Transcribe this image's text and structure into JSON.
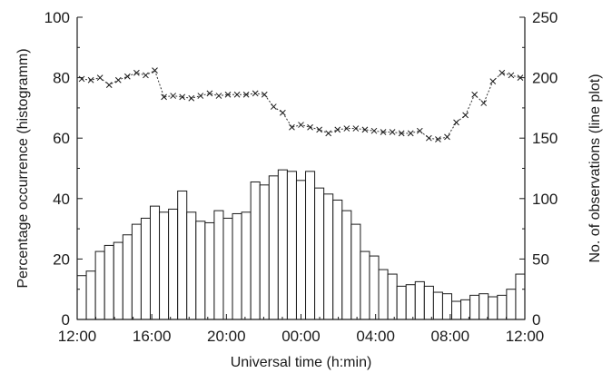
{
  "chart_data": {
    "type": "bar",
    "xlabel": "Universal time (h:min)",
    "ylabel": "Percentage occurrence (histogramm)",
    "y2label": "No. of observations (line plot)",
    "x_tick_labels": [
      "12:00",
      "16:00",
      "20:00",
      "00:00",
      "04:00",
      "08:00",
      "12:00"
    ],
    "ylim": [
      0,
      100
    ],
    "y2lim": [
      0,
      250
    ],
    "y_ticks": [
      0,
      20,
      40,
      60,
      80,
      100
    ],
    "y2_ticks": [
      0,
      50,
      100,
      150,
      200,
      250
    ],
    "grid": false,
    "series": [
      {
        "type": "bar",
        "axis": "left",
        "values": [
          14.5,
          16,
          22.5,
          24.5,
          25.5,
          28,
          31.5,
          33.5,
          37.5,
          35.5,
          36.5,
          42.5,
          35.5,
          32.5,
          32,
          36,
          33.5,
          35,
          35.5,
          45.5,
          44.5,
          47.5,
          49.5,
          49,
          46,
          49,
          43.5,
          41.5,
          39.5,
          36,
          31.5,
          22.5,
          21,
          16.5,
          15,
          11,
          11.5,
          12.5,
          11,
          9,
          8.5,
          6,
          6.5,
          8,
          8.5,
          7.5,
          8,
          10,
          15
        ]
      },
      {
        "type": "line",
        "axis": "right",
        "values": [
          199,
          198,
          200,
          194,
          198,
          201,
          204,
          202,
          206,
          184,
          185,
          184,
          183,
          185,
          187,
          185,
          186,
          186,
          186,
          187,
          186,
          176,
          171,
          159,
          161,
          159,
          157,
          154,
          157,
          158,
          158,
          157,
          156,
          155,
          155,
          154,
          154,
          156,
          150,
          149,
          151,
          163,
          169,
          186,
          179,
          197,
          204,
          202,
          200
        ]
      }
    ]
  }
}
